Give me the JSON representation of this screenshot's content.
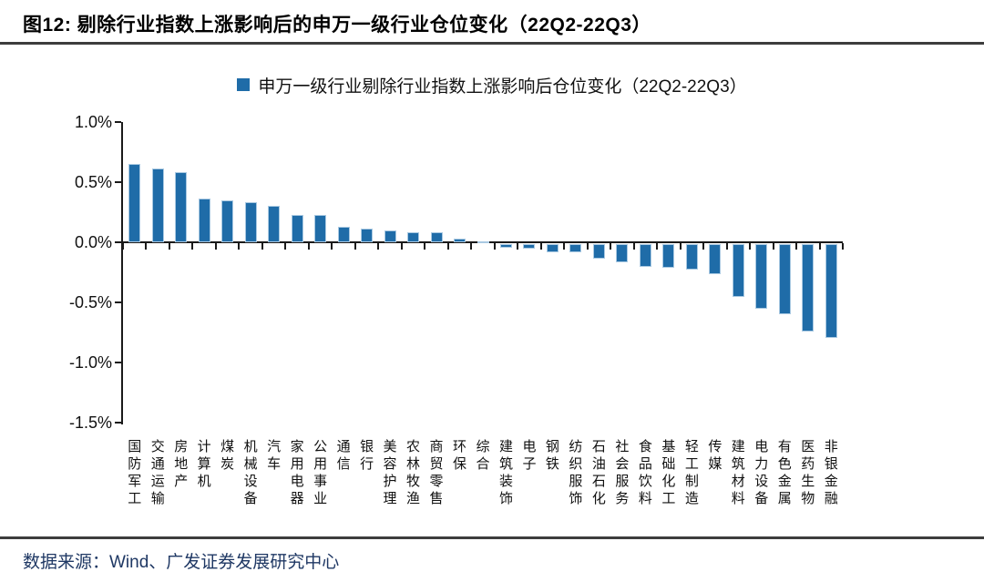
{
  "figure": {
    "title": "图12:  剔除行业指数上涨影响后的申万一级行业仓位变化（22Q2-22Q3）",
    "source": "数据来源：Wind、广发证券发展研究中心"
  },
  "chart_data": {
    "type": "bar",
    "legend": "申万一级行业剔除行业指数上涨影响后仓位变化（22Q2-22Q3）",
    "legend_position": "top",
    "categories": [
      "国防军工",
      "交通运输",
      "房地产",
      "计算机",
      "煤炭",
      "机械设备",
      "汽车",
      "家用电器",
      "公用事业",
      "通信",
      "银行",
      "美容护理",
      "农林牧渔",
      "商贸零售",
      "环保",
      "综合",
      "建筑装饰",
      "电子",
      "钢铁",
      "纺织服饰",
      "石油石化",
      "社会服务",
      "食品饮料",
      "基础化工",
      "轻工制造",
      "传媒",
      "建筑材料",
      "电力设备",
      "有色金属",
      "医药生物",
      "非银金融"
    ],
    "values": [
      0.65,
      0.61,
      0.58,
      0.36,
      0.35,
      0.33,
      0.3,
      0.23,
      0.23,
      0.13,
      0.11,
      0.1,
      0.08,
      0.08,
      0.03,
      0.01,
      -0.03,
      -0.04,
      -0.07,
      -0.07,
      -0.12,
      -0.15,
      -0.19,
      -0.2,
      -0.21,
      -0.25,
      -0.44,
      -0.54,
      -0.58,
      -0.73,
      -0.78
    ],
    "unit": "%",
    "ylim": [
      -1.5,
      1.0
    ],
    "ytick_labels": [
      "1.0%",
      "0.5%",
      "0.0%",
      "-0.5%",
      "-1.0%",
      "-1.5%"
    ],
    "ytick_values": [
      1.0,
      0.5,
      0.0,
      -0.5,
      -1.0,
      -1.5
    ],
    "grid": false,
    "bar_color": "#1F6CA8",
    "bar_edge_color": "#A9C9E2",
    "accent_text_color": "#1F3864"
  }
}
